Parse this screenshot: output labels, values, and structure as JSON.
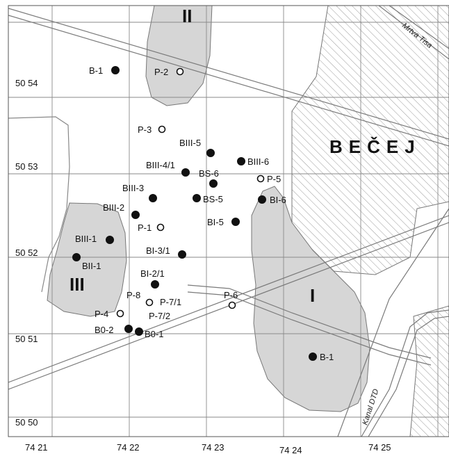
{
  "map": {
    "x_ticks": [
      "74 21",
      "74 22",
      "74 23",
      "74 24",
      "74 25"
    ],
    "y_ticks": [
      "50 54",
      "50 53",
      "50 52",
      "50 51",
      "50 50"
    ],
    "zones": [
      {
        "id": "zone-ii",
        "label": "II"
      },
      {
        "id": "zone-iii",
        "label": "III"
      },
      {
        "id": "zone-i",
        "label": "I"
      }
    ],
    "town": "BEČEJ",
    "waterways": [
      "Mrtva Tisa",
      "Kanal DTD"
    ],
    "wells": [
      {
        "label": "B-1",
        "type": "filled"
      },
      {
        "label": "P-2",
        "type": "open"
      },
      {
        "label": "P-3",
        "type": "open"
      },
      {
        "label": "BIII-5",
        "type": "filled"
      },
      {
        "label": "BIII-6",
        "type": "filled"
      },
      {
        "label": "BIII-4/1",
        "type": "filled"
      },
      {
        "label": "BS-6",
        "type": "filled"
      },
      {
        "label": "P-5",
        "type": "open"
      },
      {
        "label": "BIII-3",
        "type": "filled"
      },
      {
        "label": "BS-5",
        "type": "filled"
      },
      {
        "label": "BI-6",
        "type": "filled"
      },
      {
        "label": "BIII-2",
        "type": "filled"
      },
      {
        "label": "BI-5",
        "type": "filled"
      },
      {
        "label": "P-1",
        "type": "open"
      },
      {
        "label": "BIII-1",
        "type": "filled"
      },
      {
        "label": "BII-1",
        "type": "filled"
      },
      {
        "label": "BI-3/1",
        "type": "filled"
      },
      {
        "label": "BI-2/1",
        "type": "filled"
      },
      {
        "label": "P-8",
        "type": "open"
      },
      {
        "label": "P-7/1",
        "type": "open"
      },
      {
        "label": "P-6",
        "type": "open"
      },
      {
        "label": "P-4",
        "type": "open"
      },
      {
        "label": "P-7/2",
        "type": "open"
      },
      {
        "label": "B0-2",
        "type": "filled"
      },
      {
        "label": "B0-1",
        "type": "filled"
      },
      {
        "label": "B-1",
        "type": "filled"
      }
    ]
  },
  "colors": {
    "zone_fill": "#d6d6d6",
    "zone_stroke": "#777777",
    "grid": "#8a8a8a",
    "hatch": "#9a9a9a",
    "road": "#7a7a7a",
    "well": "#111111"
  }
}
